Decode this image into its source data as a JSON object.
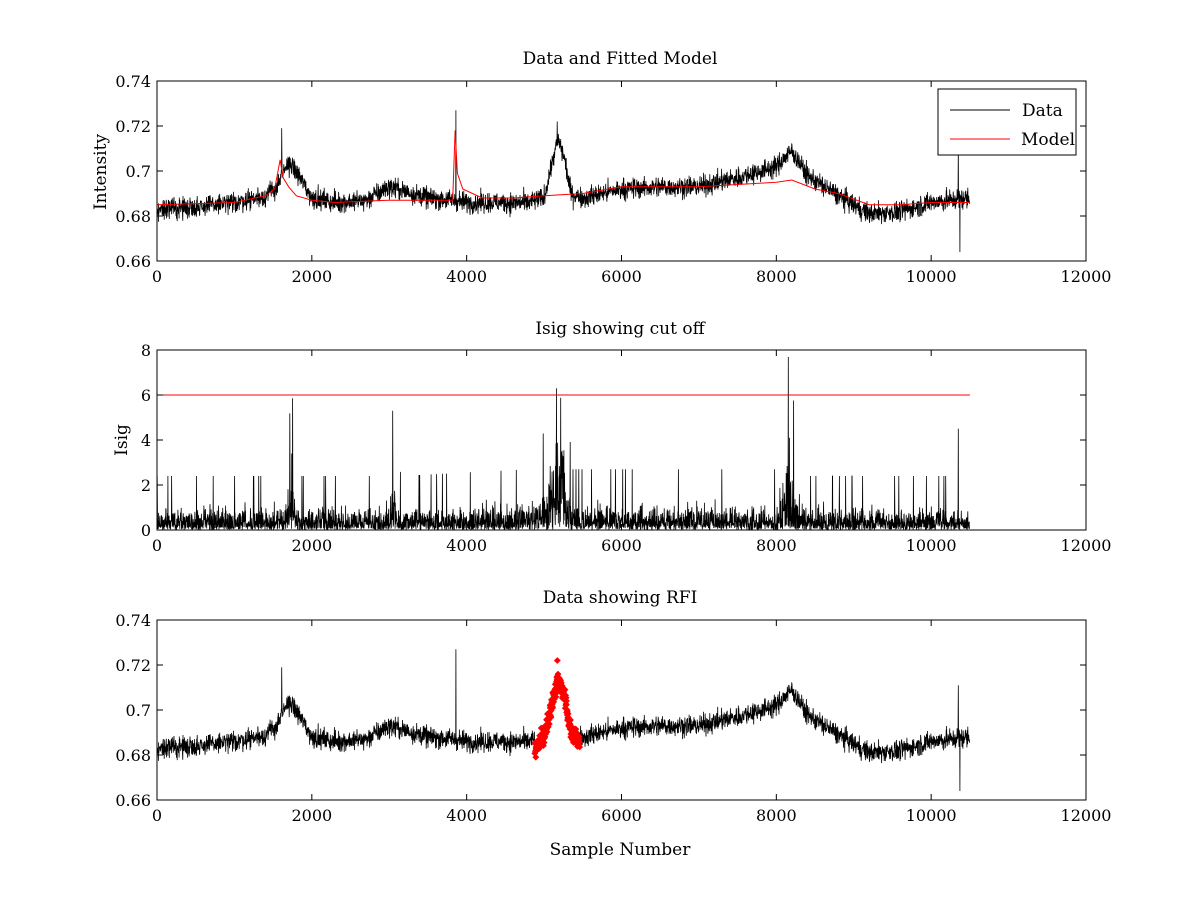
{
  "figure": {
    "background": "#ffffff"
  },
  "chart_data": [
    {
      "type": "line",
      "title": "Data and Fitted Model",
      "xlabel": "",
      "ylabel": "Intensity",
      "xlim": [
        0,
        12000
      ],
      "ylim": [
        0.66,
        0.74
      ],
      "xticks": [
        0,
        2000,
        4000,
        6000,
        8000,
        10000,
        12000
      ],
      "xtick_labels": [
        "0",
        "2000",
        "4000",
        "6000",
        "8000",
        "10000",
        "12000"
      ],
      "yticks": [
        0.66,
        0.68,
        0.7,
        0.72,
        0.74
      ],
      "ytick_labels": [
        "0.66",
        "0.68",
        "0.7",
        "0.72",
        "0.74"
      ],
      "grid": false,
      "legend_position": "top-right",
      "legend": [
        {
          "label": "Data",
          "color": "#000000"
        },
        {
          "label": "Model",
          "color": "#ff0000"
        }
      ],
      "series": [
        {
          "name": "Data",
          "color": "#000000",
          "sample_count": 10500,
          "noise": 0.0045,
          "shape_points": [
            [
              0,
              0.683
            ],
            [
              500,
              0.684
            ],
            [
              1000,
              0.686
            ],
            [
              1400,
              0.689
            ],
            [
              1550,
              0.693
            ],
            [
              1700,
              0.704
            ],
            [
              1850,
              0.697
            ],
            [
              2000,
              0.688
            ],
            [
              2300,
              0.686
            ],
            [
              2700,
              0.687
            ],
            [
              3000,
              0.693
            ],
            [
              3200,
              0.691
            ],
            [
              3500,
              0.688
            ],
            [
              3850,
              0.687
            ],
            [
              4000,
              0.686
            ],
            [
              4400,
              0.686
            ],
            [
              4800,
              0.686
            ],
            [
              5000,
              0.688
            ],
            [
              5100,
              0.703
            ],
            [
              5180,
              0.714
            ],
            [
              5260,
              0.706
            ],
            [
              5350,
              0.69
            ],
            [
              5500,
              0.688
            ],
            [
              6000,
              0.692
            ],
            [
              6500,
              0.693
            ],
            [
              7000,
              0.693
            ],
            [
              7500,
              0.697
            ],
            [
              8000,
              0.702
            ],
            [
              8200,
              0.709
            ],
            [
              8400,
              0.698
            ],
            [
              8800,
              0.689
            ],
            [
              9200,
              0.681
            ],
            [
              9600,
              0.682
            ],
            [
              10000,
              0.686
            ],
            [
              10500,
              0.688
            ]
          ],
          "spikes": [
            [
              1610,
              0.719
            ],
            [
              3860,
              0.727
            ],
            [
              5170,
              0.722
            ],
            [
              10350,
              0.711
            ],
            [
              10370,
              0.664
            ]
          ]
        },
        {
          "name": "Model",
          "color": "#ff0000",
          "points": [
            [
              0,
              0.685
            ],
            [
              1000,
              0.686
            ],
            [
              1400,
              0.689
            ],
            [
              1520,
              0.692
            ],
            [
              1590,
              0.705
            ],
            [
              1630,
              0.697
            ],
            [
              1700,
              0.693
            ],
            [
              1800,
              0.689
            ],
            [
              2000,
              0.687
            ],
            [
              2300,
              0.686
            ],
            [
              3000,
              0.687
            ],
            [
              3500,
              0.687
            ],
            [
              3820,
              0.687
            ],
            [
              3850,
              0.718
            ],
            [
              3880,
              0.699
            ],
            [
              3950,
              0.692
            ],
            [
              4200,
              0.688
            ],
            [
              4600,
              0.688
            ],
            [
              5000,
              0.689
            ],
            [
              5500,
              0.69
            ],
            [
              6000,
              0.693
            ],
            [
              6500,
              0.693
            ],
            [
              7000,
              0.693
            ],
            [
              7500,
              0.694
            ],
            [
              8000,
              0.695
            ],
            [
              8200,
              0.696
            ],
            [
              8500,
              0.692
            ],
            [
              8800,
              0.69
            ],
            [
              9200,
              0.685
            ],
            [
              9600,
              0.685
            ],
            [
              10000,
              0.686
            ],
            [
              10500,
              0.686
            ]
          ]
        }
      ]
    },
    {
      "type": "line",
      "title": "Isig showing cut off",
      "xlabel": "",
      "ylabel": "Isig",
      "xlim": [
        0,
        12000
      ],
      "ylim": [
        0,
        8
      ],
      "xticks": [
        0,
        2000,
        4000,
        6000,
        8000,
        10000,
        12000
      ],
      "xtick_labels": [
        "0",
        "2000",
        "4000",
        "6000",
        "8000",
        "10000",
        "12000"
      ],
      "yticks": [
        0,
        2,
        4,
        6,
        8
      ],
      "ytick_labels": [
        "0",
        "2",
        "4",
        "6",
        "8"
      ],
      "grid": false,
      "series": [
        {
          "color": "#000000",
          "sample_count": 10500,
          "noise_scale": 1.0,
          "shape_points": [
            [
              0,
              0.8
            ],
            [
              1600,
              0.8
            ],
            [
              1750,
              2.0
            ],
            [
              1800,
              0.8
            ],
            [
              2900,
              0.8
            ],
            [
              3050,
              1.8
            ],
            [
              3150,
              0.8
            ],
            [
              4800,
              0.9
            ],
            [
              5050,
              1.6
            ],
            [
              5150,
              5.4
            ],
            [
              5250,
              4.0
            ],
            [
              5350,
              0.9
            ],
            [
              8000,
              0.9
            ],
            [
              8150,
              2.6
            ],
            [
              8300,
              1.2
            ],
            [
              8400,
              0.8
            ],
            [
              10500,
              0.8
            ]
          ],
          "spikes": [
            [
              5160,
              6.3
            ],
            [
              8170,
              4.1
            ],
            [
              10350,
              4.5
            ],
            [
              1740,
              3.4
            ]
          ]
        },
        {
          "color": "#ff0000",
          "points": [
            [
              0,
              6
            ],
            [
              10500,
              6
            ]
          ]
        }
      ]
    },
    {
      "type": "line",
      "title": "Data showing RFI",
      "xlabel": "Sample Number",
      "ylabel": "",
      "xlim": [
        0,
        12000
      ],
      "ylim": [
        0.66,
        0.74
      ],
      "xticks": [
        0,
        2000,
        4000,
        6000,
        8000,
        10000,
        12000
      ],
      "xtick_labels": [
        "0",
        "2000",
        "4000",
        "6000",
        "8000",
        "10000",
        "12000"
      ],
      "yticks": [
        0.66,
        0.68,
        0.7,
        0.72,
        0.74
      ],
      "ytick_labels": [
        "0.66",
        "0.68",
        "0.7",
        "0.72",
        "0.74"
      ],
      "grid": false,
      "series": [
        {
          "color": "#000000",
          "sample_count": 10500,
          "noise": 0.0045,
          "same_as": "Data",
          "spikes": [
            [
              1610,
              0.719
            ],
            [
              3860,
              0.727
            ],
            [
              10350,
              0.711
            ],
            [
              10370,
              0.664
            ]
          ]
        },
        {
          "color": "#ff0000",
          "marker": "diamond",
          "x_range": [
            4880,
            5460
          ],
          "shape_points": [
            [
              4880,
              0.683
            ],
            [
              5000,
              0.688
            ],
            [
              5100,
              0.703
            ],
            [
              5180,
              0.714
            ],
            [
              5260,
              0.706
            ],
            [
              5350,
              0.69
            ],
            [
              5460,
              0.686
            ]
          ],
          "peak": [
            5170,
            0.722
          ],
          "min": [
            4900,
            0.679
          ]
        }
      ]
    }
  ]
}
